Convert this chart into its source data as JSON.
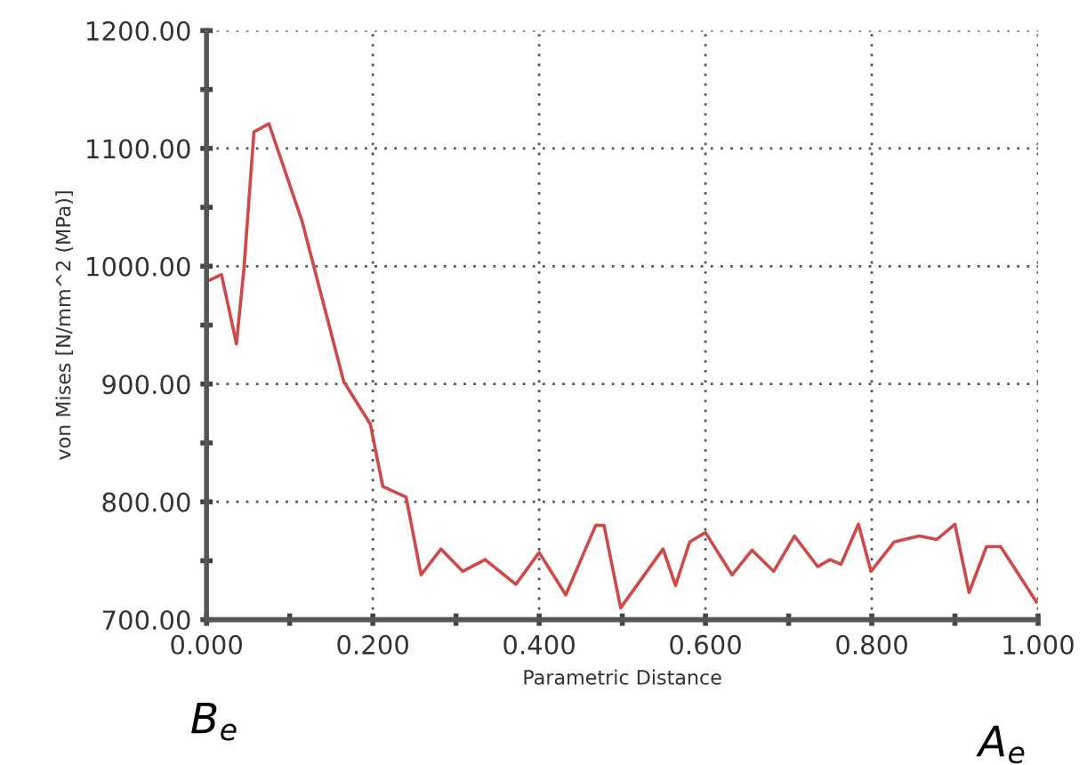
{
  "chart_data": {
    "type": "line",
    "xlabel": "Parametric Distance",
    "ylabel": "von Mises [N/mm^2 (MPa)]",
    "x": [
      0,
      0.018,
      0.036,
      0.045,
      0.057,
      0.075,
      0.115,
      0.165,
      0.197,
      0.212,
      0.24,
      0.258,
      0.282,
      0.308,
      0.335,
      0.372,
      0.4,
      0.432,
      0.468,
      0.478,
      0.498,
      0.549,
      0.564,
      0.581,
      0.6,
      0.632,
      0.656,
      0.682,
      0.707,
      0.735,
      0.75,
      0.763,
      0.784,
      0.799,
      0.827,
      0.857,
      0.878,
      0.9,
      0.917,
      0.938,
      0.955,
      0.998
    ],
    "series": [
      {
        "color": "#d04848",
        "values": [
          987,
          993,
          934,
          998,
          1114,
          1121,
          1038,
          902,
          866,
          813,
          804,
          738,
          760,
          741,
          751,
          730,
          757,
          721,
          780,
          780,
          710,
          760,
          729,
          766,
          774,
          738,
          759,
          741,
          771,
          745,
          751,
          747,
          781,
          741,
          766,
          771,
          768,
          781,
          723,
          762,
          762,
          715
        ]
      }
    ],
    "xlim": [
      0,
      1
    ],
    "ylim": [
      700,
      1200
    ],
    "xticks": [
      {
        "value": 0,
        "label": "0.000"
      },
      {
        "value": 0.1,
        "label": null
      },
      {
        "value": 0.2,
        "label": "0.200"
      },
      {
        "value": 0.3,
        "label": null
      },
      {
        "value": 0.4,
        "label": "0.400"
      },
      {
        "value": 0.5,
        "label": null
      },
      {
        "value": 0.6,
        "label": "0.600"
      },
      {
        "value": 0.7,
        "label": null
      },
      {
        "value": 0.8,
        "label": "0.800"
      },
      {
        "value": 0.9,
        "label": null
      },
      {
        "value": 1,
        "label": "1.000"
      }
    ],
    "yticks": [
      {
        "value": 700,
        "label": "700.00"
      },
      {
        "value": 750,
        "label": null
      },
      {
        "value": 800,
        "label": "800.00"
      },
      {
        "value": 850,
        "label": null
      },
      {
        "value": 900,
        "label": "900.00"
      },
      {
        "value": 950,
        "label": null
      },
      {
        "value": 1000,
        "label": "1000.00"
      },
      {
        "value": 1050,
        "label": null
      },
      {
        "value": 1100,
        "label": "1100.00"
      },
      {
        "value": 1150,
        "label": null
      },
      {
        "value": 1200,
        "label": "1200.00"
      }
    ],
    "grid": true,
    "marker": "none",
    "line_style": "solid",
    "annotations": [
      "B$_{e}$",
      "A$_{e}$"
    ]
  }
}
